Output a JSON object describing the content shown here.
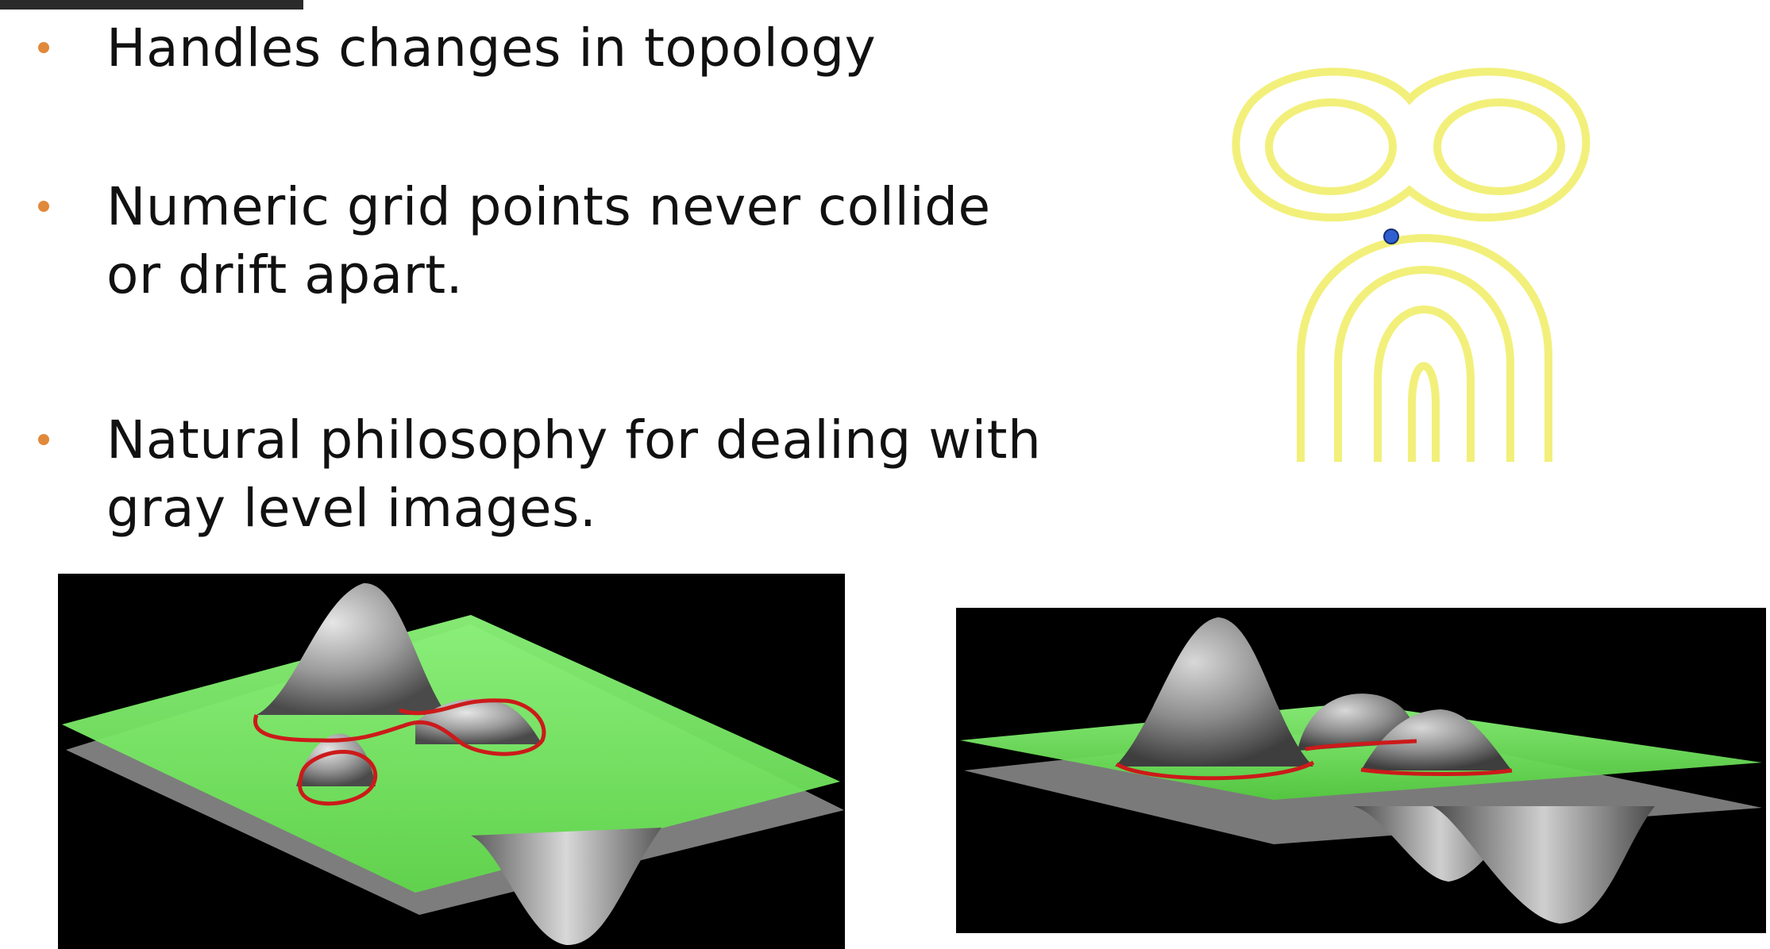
{
  "slide": {
    "bullets": [
      {
        "lines": [
          "Handles changes in topology"
        ]
      },
      {
        "lines": [
          "Numeric grid points never collide",
          "or drift apart."
        ]
      },
      {
        "lines": [
          "Natural philosophy for dealing with",
          "gray level images."
        ]
      }
    ]
  },
  "figures": {
    "contour_diagram": {
      "curve_color": "#f2f07a",
      "marker_color": "#2f5fd0"
    },
    "surface_left": {
      "background": "#000000",
      "plane_color": "#7cf06a",
      "contour_color": "#cc1a1a",
      "surface_color": "#9a9a9a"
    },
    "surface_right": {
      "background": "#000000",
      "plane_color": "#7cf06a",
      "contour_color": "#cc1a1a",
      "surface_color": "#9a9a9a"
    }
  }
}
